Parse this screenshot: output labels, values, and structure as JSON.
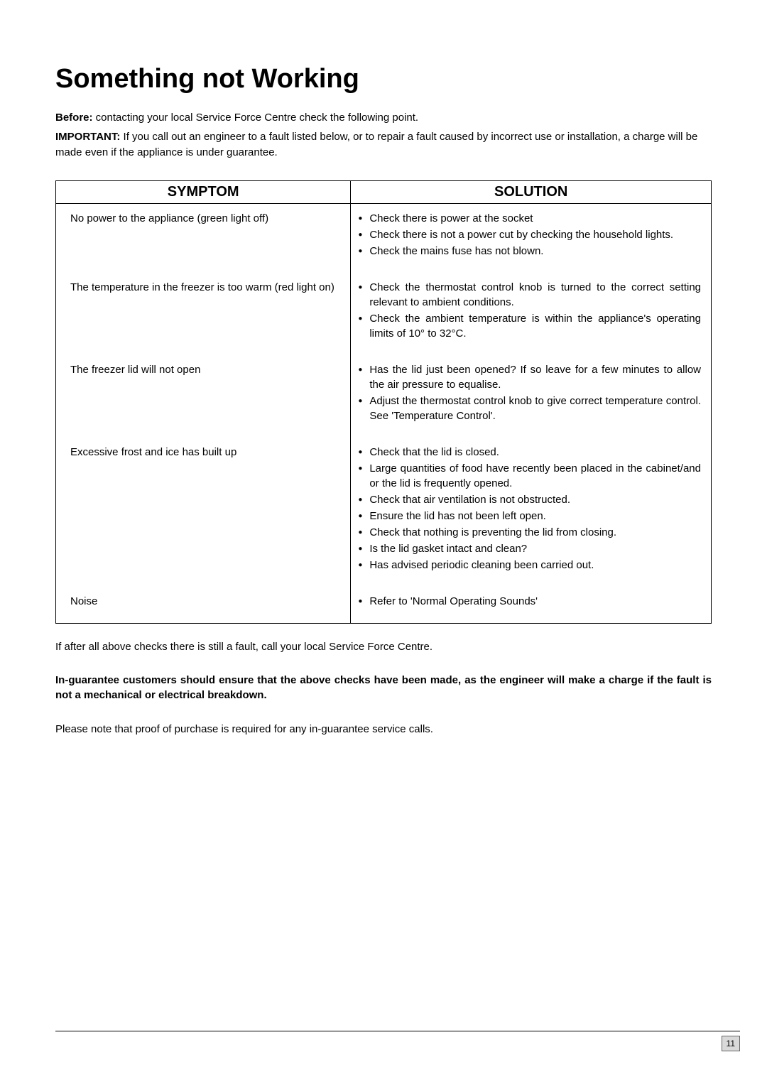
{
  "title": "Something not Working",
  "intro": {
    "before_label": "Before:",
    "before_text": " contacting your local Service Force Centre check the following point."
  },
  "important": {
    "label": "IMPORTANT:",
    "text": " If you call out an engineer to a fault listed below, or to repair a fault caused by incorrect use or installation, a charge will be made even if the appliance is under guarantee."
  },
  "table": {
    "header_symptom": "SYMPTOM",
    "header_solution": "SOLUTION",
    "rows": [
      {
        "symptom": "No power to the appliance (green light off)",
        "solutions": [
          {
            "text": "Check there is power at the socket",
            "justify": false
          },
          {
            "text": "Check there is not a power cut by checking the household lights.",
            "justify": true
          },
          {
            "text": "Check the mains fuse has not blown.",
            "justify": false
          }
        ]
      },
      {
        "symptom": "The temperature in the freezer is too warm (red light on)",
        "solutions": [
          {
            "text": "Check the thermostat control knob is turned to the correct setting relevant to ambient conditions.",
            "justify": true
          },
          {
            "text": "Check the ambient temperature is within the appliance's operating limits of 10° to 32°C.",
            "justify": true
          }
        ]
      },
      {
        "symptom": "The freezer lid will not open",
        "solutions": [
          {
            "text": "Has the lid just been opened? If so leave for a few minutes to allow the air pressure to equalise.",
            "justify": true
          },
          {
            "text": "Adjust the thermostat control knob to give correct temperature control. See 'Temperature Control'.",
            "justify": true
          }
        ]
      },
      {
        "symptom": "Excessive frost and ice has built up",
        "solutions": [
          {
            "text": "Check that the lid is closed.",
            "justify": false
          },
          {
            "text": "Large quantities of food have recently been placed in the cabinet/and or the lid is frequently opened.",
            "justify": true
          },
          {
            "text": "Check that air ventilation is not obstructed.",
            "justify": false
          },
          {
            "text": "Ensure the lid has not been left open.",
            "justify": false
          },
          {
            "text": "Check that nothing is preventing the lid from closing.",
            "justify": false
          },
          {
            "text": "Is the lid gasket intact and clean?",
            "justify": false
          },
          {
            "text": "Has advised periodic cleaning been carried out.",
            "justify": false
          }
        ]
      },
      {
        "symptom": "Noise",
        "solutions": [
          {
            "text": "Refer to 'Normal Operating Sounds'",
            "justify": false
          }
        ]
      }
    ]
  },
  "after_checks": "If after all above checks there is still a fault, call your local Service Force Centre.",
  "guarantee_note": "In-guarantee customers should ensure that the above checks have been made, as the engineer will make a charge if the fault is not a mechanical or electrical breakdown.",
  "proof_note": "Please note that proof of purchase is required for any in-guarantee service calls.",
  "page_number": "11"
}
